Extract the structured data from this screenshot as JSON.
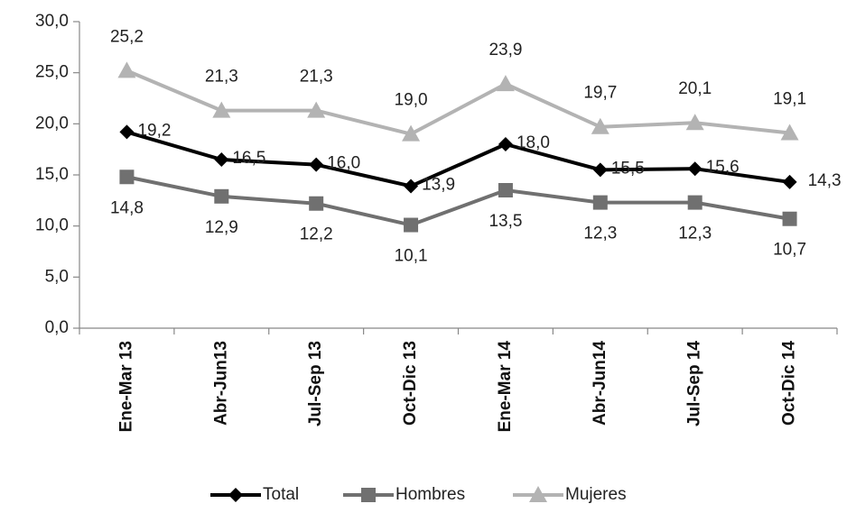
{
  "chart_data": {
    "type": "line",
    "categories": [
      "Ene-Mar 13",
      "Abr-Jun13",
      "Jul-Sep 13",
      "Oct-Dic 13",
      "Ene-Mar 14",
      "Abr-Jun14",
      "Jul-Sep 14",
      "Oct-Dic 14"
    ],
    "series": [
      {
        "name": "Total",
        "values": [
          19.2,
          16.5,
          16.0,
          13.9,
          18.0,
          15.5,
          15.6,
          14.3
        ],
        "labels": [
          "19,2",
          "16,5",
          "16,0",
          "13,9",
          "18,0",
          "15,5",
          "15,6",
          "14,3"
        ],
        "color": "#000000",
        "marker": "diamond"
      },
      {
        "name": "Hombres",
        "values": [
          14.8,
          12.9,
          12.2,
          10.1,
          13.5,
          12.3,
          12.3,
          10.7
        ],
        "labels": [
          "14,8",
          "12,9",
          "12,2",
          "10,1",
          "13,5",
          "12,3",
          "12,3",
          "10,7"
        ],
        "color": "#707070",
        "marker": "square"
      },
      {
        "name": "Mujeres",
        "values": [
          25.2,
          21.3,
          21.3,
          19.0,
          23.9,
          19.7,
          20.1,
          19.1
        ],
        "labels": [
          "25,2",
          "21,3",
          "21,3",
          "19,0",
          "23,9",
          "19,7",
          "20,1",
          "19,1"
        ],
        "color": "#b3b3b3",
        "marker": "triangle"
      }
    ],
    "yticks": [
      "0,0",
      "5,0",
      "10,0",
      "15,0",
      "20,0",
      "25,0",
      "30,0"
    ],
    "ylim": [
      0,
      30
    ],
    "grid": false,
    "legend": "bottom",
    "title": "",
    "xlabel": "",
    "ylabel": ""
  }
}
